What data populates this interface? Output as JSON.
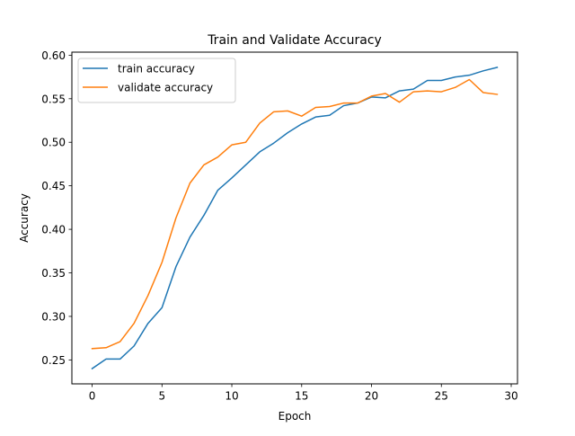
{
  "chart_data": {
    "type": "line",
    "title": "Train and Validate Accuracy",
    "xlabel": "Epoch",
    "ylabel": "Accuracy",
    "xlim": [
      -1.45,
      30.45
    ],
    "ylim": [
      0.2225,
      0.6035
    ],
    "xticks": [
      0,
      5,
      10,
      15,
      20,
      25,
      30
    ],
    "xtick_labels": [
      "0",
      "5",
      "10",
      "15",
      "20",
      "25",
      "30"
    ],
    "yticks": [
      0.25,
      0.3,
      0.35,
      0.4,
      0.45,
      0.5,
      0.55,
      0.6
    ],
    "ytick_labels": [
      "0.25",
      "0.30",
      "0.35",
      "0.40",
      "0.45",
      "0.50",
      "0.55",
      "0.60"
    ],
    "grid": false,
    "legend_position": "upper-left",
    "x": [
      0,
      1,
      2,
      3,
      4,
      5,
      6,
      7,
      8,
      9,
      10,
      11,
      12,
      13,
      14,
      15,
      16,
      17,
      18,
      19,
      20,
      21,
      22,
      23,
      24,
      25,
      26,
      27,
      28,
      29
    ],
    "series": [
      {
        "name": "train accuracy",
        "color": "#1f77b4",
        "values": [
          0.24,
          0.251,
          0.251,
          0.266,
          0.292,
          0.31,
          0.357,
          0.391,
          0.416,
          0.445,
          0.459,
          0.474,
          0.489,
          0.499,
          0.511,
          0.521,
          0.529,
          0.531,
          0.542,
          0.545,
          0.552,
          0.551,
          0.559,
          0.561,
          0.571,
          0.571,
          0.575,
          0.577,
          0.582,
          0.586
        ]
      },
      {
        "name": "validate accuracy",
        "color": "#ff7f0e",
        "values": [
          0.263,
          0.264,
          0.271,
          0.292,
          0.324,
          0.362,
          0.413,
          0.453,
          0.474,
          0.483,
          0.497,
          0.5,
          0.522,
          0.535,
          0.536,
          0.53,
          0.54,
          0.541,
          0.545,
          0.545,
          0.553,
          0.556,
          0.546,
          0.558,
          0.559,
          0.558,
          0.563,
          0.572,
          0.557,
          0.555
        ]
      }
    ]
  }
}
